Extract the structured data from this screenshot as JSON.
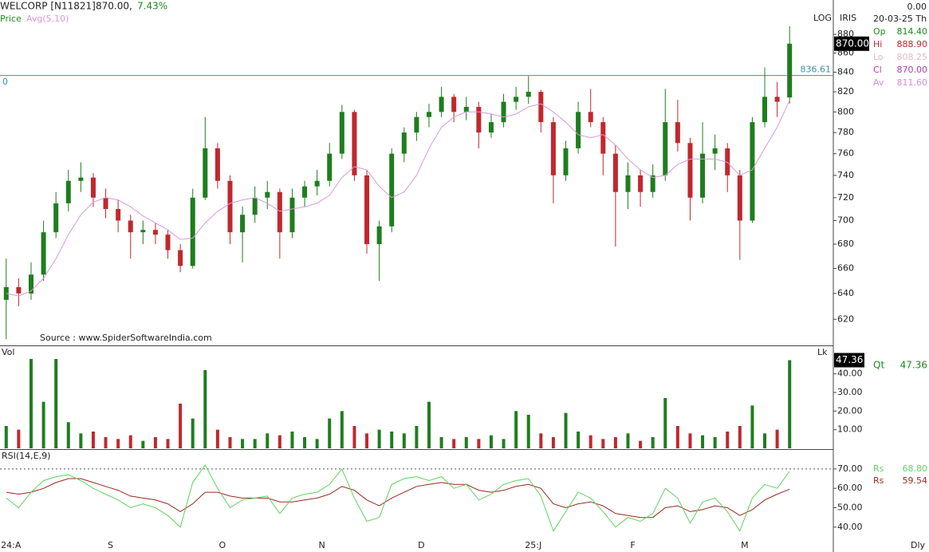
{
  "header": {
    "symbol": "WELCORP [N11821]",
    "price": "870.00,",
    "change": "7.43%"
  },
  "info": {
    "top_value": "0.00",
    "date": "20-03-25 Th",
    "iris": "IRIS",
    "period": "Dly",
    "rows": [
      {
        "label": "Op",
        "value": "814.40",
        "color": "#1e8a1e"
      },
      {
        "label": "Hi",
        "value": "888.90",
        "color": "#c0282d"
      },
      {
        "label": "Lo",
        "value": "808.25",
        "color": "#e0b8c8"
      },
      {
        "label": "Cl",
        "value": "870.00",
        "color": "#b03ab0"
      },
      {
        "label": "Av",
        "value": "811.60",
        "color": "#d38fd3"
      }
    ]
  },
  "chart_data": [
    {
      "type": "candlestick",
      "name": "Price",
      "log_scale": true,
      "scale_label": "LOG",
      "up_color": "#1e7d1e",
      "down_color": "#c0282d",
      "price_tag": "870.00",
      "left_label": "0",
      "source": "Source : www.SpiderSoftwareIndia.com",
      "reference_line": {
        "value": 836.61,
        "label": "836.61",
        "color": "#3a8fa8"
      },
      "categories": [
        "24:A",
        null,
        null,
        null,
        null,
        null,
        null,
        null,
        "S",
        null,
        null,
        null,
        null,
        null,
        null,
        null,
        null,
        "O",
        null,
        null,
        null,
        null,
        null,
        null,
        null,
        "N",
        null,
        null,
        null,
        null,
        null,
        null,
        null,
        "D",
        null,
        null,
        null,
        null,
        null,
        null,
        null,
        null,
        "25:J",
        null,
        null,
        null,
        null,
        null,
        null,
        null,
        "F",
        null,
        null,
        null,
        null,
        null,
        null,
        null,
        null,
        "M",
        null,
        null,
        null,
        null
      ],
      "open": [
        635,
        645,
        640,
        655,
        690,
        715,
        735,
        738,
        720,
        710,
        700,
        690,
        692,
        688,
        675,
        662,
        720,
        765,
        735,
        690,
        705,
        720,
        725,
        690,
        720,
        730,
        735,
        760,
        800,
        740,
        680,
        695,
        760,
        780,
        795,
        800,
        815,
        800,
        805,
        780,
        790,
        810,
        815,
        820,
        790,
        740,
        765,
        800,
        790,
        760,
        725,
        740,
        725,
        740,
        790,
        770,
        720,
        760,
        765,
        740,
        700,
        790,
        815,
        814.4
      ],
      "high": [
        668,
        652,
        665,
        700,
        725,
        745,
        752,
        742,
        728,
        718,
        705,
        700,
        698,
        692,
        680,
        728,
        795,
        770,
        740,
        712,
        730,
        735,
        728,
        728,
        735,
        745,
        770,
        807,
        802,
        745,
        700,
        765,
        785,
        800,
        808,
        825,
        818,
        815,
        810,
        798,
        818,
        825,
        836,
        822,
        795,
        772,
        810,
        823,
        795,
        768,
        752,
        745,
        750,
        823,
        812,
        775,
        790,
        778,
        770,
        745,
        795,
        845,
        830,
        888.9
      ],
      "low": [
        605,
        630,
        635,
        650,
        685,
        708,
        725,
        712,
        702,
        690,
        668,
        680,
        680,
        668,
        657,
        660,
        718,
        728,
        680,
        665,
        698,
        710,
        668,
        685,
        712,
        722,
        730,
        755,
        735,
        672,
        650,
        690,
        752,
        772,
        785,
        795,
        790,
        792,
        765,
        775,
        785,
        802,
        808,
        780,
        715,
        735,
        760,
        785,
        740,
        678,
        710,
        712,
        720,
        735,
        762,
        700,
        715,
        745,
        725,
        667,
        698,
        785,
        795,
        808.25
      ],
      "close": [
        645,
        640,
        655,
        690,
        715,
        735,
        738,
        720,
        710,
        700,
        690,
        692,
        688,
        675,
        662,
        720,
        765,
        735,
        690,
        705,
        720,
        725,
        690,
        720,
        730,
        735,
        760,
        800,
        740,
        680,
        695,
        760,
        780,
        795,
        800,
        815,
        800,
        805,
        780,
        790,
        810,
        815,
        820,
        790,
        740,
        765,
        800,
        790,
        760,
        725,
        740,
        725,
        740,
        790,
        770,
        720,
        760,
        765,
        740,
        700,
        790,
        815,
        810,
        870
      ],
      "avg": {
        "name": "Avg(5,10)",
        "color": "#d89ad8",
        "values": [
          640,
          638,
          642,
          652,
          668,
          688,
          705,
          716,
          720,
          718,
          712,
          704,
          698,
          692,
          684,
          685,
          698,
          708,
          715,
          718,
          720,
          715,
          708,
          710,
          712,
          715,
          722,
          738,
          748,
          745,
          730,
          720,
          725,
          740,
          765,
          785,
          795,
          800,
          800,
          798,
          795,
          798,
          805,
          808,
          800,
          790,
          778,
          775,
          778,
          768,
          755,
          745,
          738,
          740,
          750,
          755,
          755,
          755,
          752,
          740,
          745,
          765,
          785,
          811.6
        ]
      },
      "ylim": [
        601,
        918
      ],
      "yticks": [
        620,
        640,
        660,
        680,
        700,
        720,
        740,
        760,
        780,
        800,
        820,
        840,
        860,
        880
      ]
    },
    {
      "type": "bar",
      "title": "Vol",
      "unit": "Lk",
      "tag": "47.36",
      "qt_label": "Qt",
      "values": [
        12,
        10,
        48,
        25,
        48,
        14,
        8,
        9,
        6,
        5,
        7,
        4,
        6,
        5,
        24,
        16,
        42,
        10,
        6,
        5,
        5,
        8,
        7,
        9,
        6,
        5,
        16,
        20,
        12,
        8,
        10,
        9,
        8,
        12,
        25,
        6,
        5,
        6,
        5,
        7,
        5,
        20,
        18,
        8,
        6,
        19,
        9,
        7,
        5,
        6,
        8,
        4,
        6,
        27,
        12,
        8,
        7,
        6,
        9,
        12,
        23,
        8,
        10,
        47.36
      ],
      "ylim": [
        0,
        54
      ],
      "yticks": [
        {
          "value": 10,
          "label": "10.00"
        },
        {
          "value": 20,
          "label": "20.00"
        },
        {
          "value": 30,
          "label": "30.00"
        },
        {
          "value": 40,
          "label": "40.00"
        }
      ]
    },
    {
      "type": "line",
      "title": "RSI(14,E,9)",
      "threshold": 70,
      "series": [
        {
          "name": "Rs",
          "color": "#5fd35f",
          "last_label": "68.80",
          "values": [
            55,
            50,
            58,
            64,
            66,
            67,
            64,
            60,
            57,
            54,
            50,
            52,
            50,
            46,
            40,
            63,
            72,
            60,
            50,
            54,
            55,
            56,
            47,
            55,
            57,
            58,
            62,
            70,
            55,
            43,
            45,
            62,
            65,
            66,
            64,
            66,
            60,
            62,
            54,
            57,
            62,
            64,
            65,
            56,
            38,
            48,
            58,
            55,
            48,
            40,
            45,
            43,
            47,
            60,
            55,
            42,
            53,
            55,
            48,
            38,
            55,
            62,
            60,
            68.8
          ]
        },
        {
          "name": "Rs",
          "color": "#9a2a1e",
          "last_label": "59.54",
          "values": [
            58,
            57,
            58,
            60,
            63,
            65,
            65,
            63,
            61,
            59,
            56,
            55,
            54,
            52,
            48,
            52,
            58,
            58,
            56,
            55,
            55,
            55,
            53,
            53,
            54,
            55,
            57,
            61,
            59,
            54,
            51,
            55,
            58,
            61,
            62,
            63,
            62,
            62,
            59,
            58,
            59,
            61,
            62,
            60,
            52,
            50,
            52,
            53,
            51,
            47,
            46,
            45,
            45,
            50,
            51,
            48,
            49,
            51,
            50,
            46,
            49,
            54,
            57,
            59.54
          ]
        }
      ],
      "ylim": [
        28,
        79
      ],
      "yticks": [
        {
          "value": 40,
          "label": "40.00"
        },
        {
          "value": 50,
          "label": "50.00"
        },
        {
          "value": 60,
          "label": "60.00"
        },
        {
          "value": 70,
          "label": "70.00"
        }
      ]
    }
  ]
}
